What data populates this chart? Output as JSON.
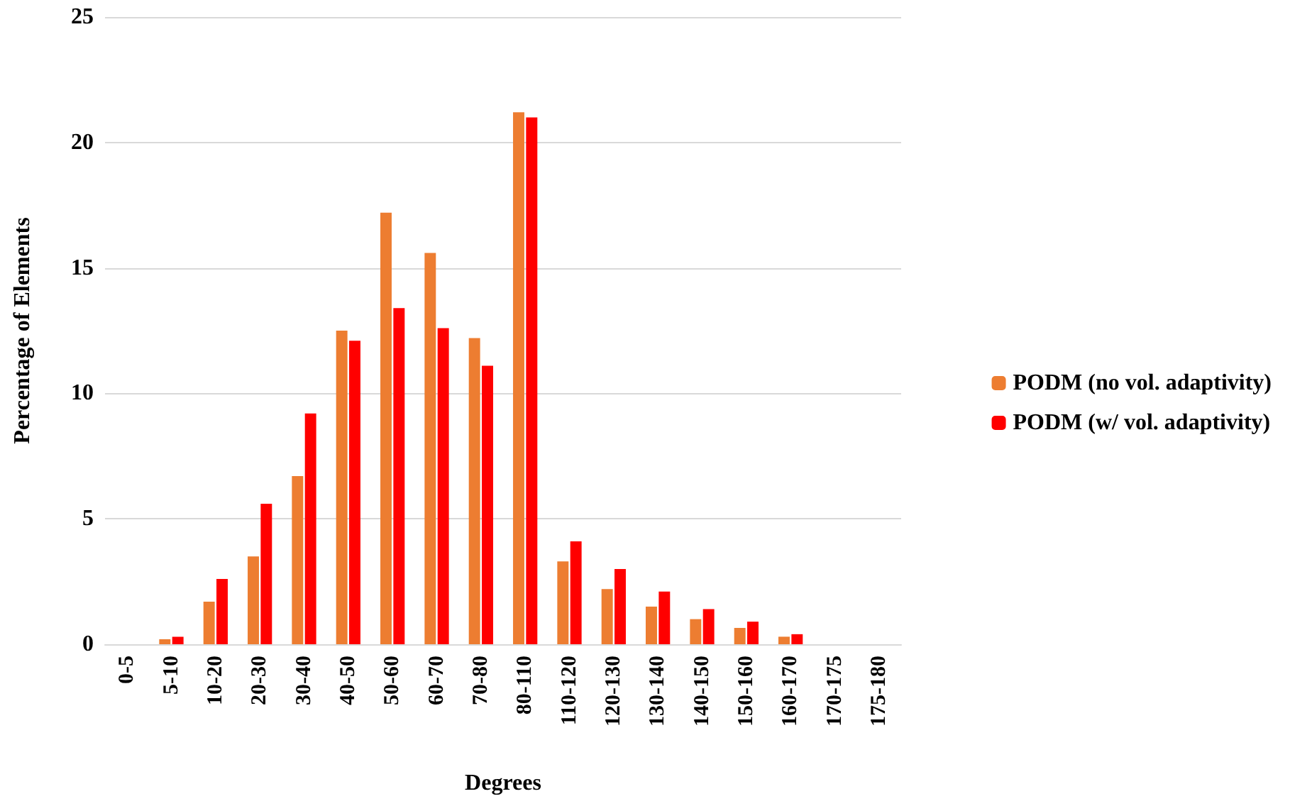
{
  "chart_data": {
    "type": "bar",
    "xlabel": "Degrees",
    "ylabel": "Percentage of Elements",
    "categories": [
      "0-5",
      "5-10",
      "10-20",
      "20-30",
      "30-40",
      "40-50",
      "50-60",
      "60-70",
      "70-80",
      "80-110",
      "110-120",
      "120-130",
      "130-140",
      "140-150",
      "150-160",
      "160-170",
      "170-175",
      "175-180"
    ],
    "series": [
      {
        "name": "PODM (no vol. adaptivity)",
        "color": "#ed7d31",
        "values": [
          0,
          0.2,
          1.7,
          3.5,
          6.7,
          12.5,
          17.2,
          15.6,
          12.2,
          21.2,
          3.3,
          2.2,
          1.5,
          1.0,
          0.65,
          0.3,
          0,
          0
        ]
      },
      {
        "name": "PODM (w/ vol. adaptivity)",
        "color": "#ff0000",
        "values": [
          0,
          0.3,
          2.6,
          5.6,
          9.2,
          12.1,
          13.4,
          12.6,
          11.1,
          21.0,
          4.1,
          3.0,
          2.1,
          1.4,
          0.9,
          0.4,
          0,
          0
        ]
      }
    ],
    "ylim": [
      0,
      25
    ],
    "yticks": [
      0,
      5,
      10,
      15,
      20,
      25
    ],
    "grid": "y",
    "legend": "right"
  }
}
